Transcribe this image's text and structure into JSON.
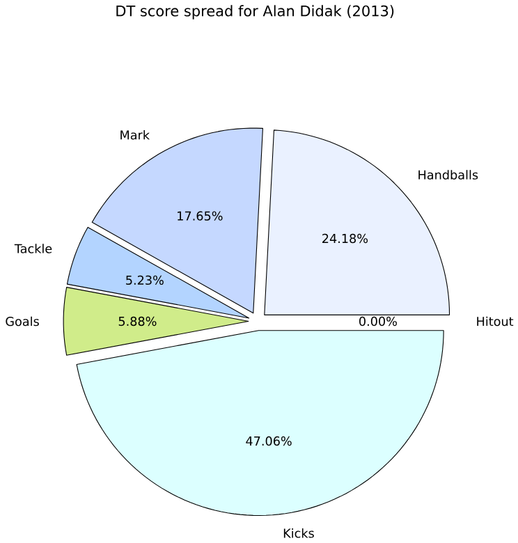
{
  "chart_data": {
    "type": "pie",
    "title": "DT score spread for Alan Didak (2013)",
    "categories": [
      "Handballs",
      "Mark",
      "Tackle",
      "Goals",
      "Kicks",
      "Hitout"
    ],
    "values": [
      24.18,
      17.65,
      5.23,
      5.88,
      47.06,
      0.0
    ],
    "value_labels": [
      "24.18%",
      "17.65%",
      "5.23%",
      "5.88%",
      "47.06%",
      "0.00%"
    ],
    "colors": [
      "#eaf1ff",
      "#c5d8ff",
      "#b3d4ff",
      "#d0ec8a",
      "#dcffff",
      "#ffffff"
    ],
    "legend": false
  }
}
